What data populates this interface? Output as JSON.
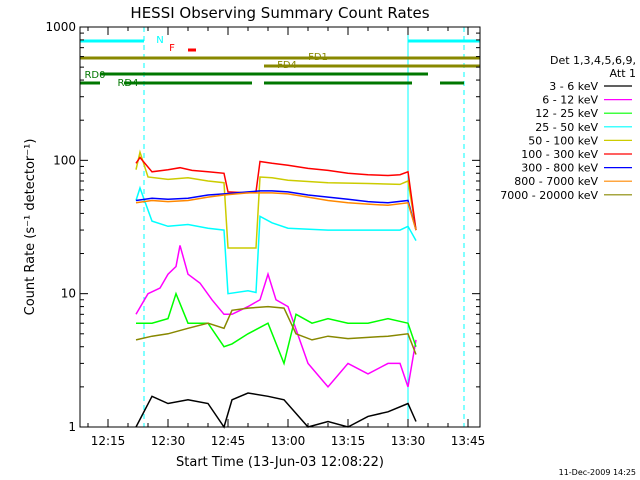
{
  "chart_data": {
    "type": "line",
    "title": "HESSI Observing Summary Count Rates",
    "xlabel": "Start Time (13-Jun-03 12:08:22)",
    "ylabel": "Count Rate (s⁻¹ detector⁻¹)",
    "yscale": "log",
    "ylim": [
      1,
      1000
    ],
    "xlim": [
      "12:08",
      "13:48"
    ],
    "x_ticks": [
      "12:15",
      "12:30",
      "12:45",
      "13:00",
      "13:15",
      "13:30",
      "13:45"
    ],
    "y_ticks": [
      "1",
      "10",
      "100",
      "1000"
    ],
    "legend_header": [
      "Det 1,3,4,5,6,9,",
      "Att 1"
    ],
    "legend_position": "right",
    "series": [
      {
        "name": "3 - 6 keV",
        "color": "#000000",
        "x": [
          "12:22",
          "12:26",
          "12:30",
          "12:35",
          "12:40",
          "12:44",
          "12:46",
          "12:50",
          "12:55",
          "12:59",
          "13:05",
          "13:10",
          "13:15",
          "13:20",
          "13:25",
          "13:30",
          "13:32"
        ],
        "y": [
          1.0,
          1.7,
          1.5,
          1.6,
          1.5,
          1.0,
          1.6,
          1.8,
          1.7,
          1.6,
          1.0,
          1.1,
          1.0,
          1.2,
          1.3,
          1.5,
          1.1
        ]
      },
      {
        "name": "6 - 12 keV",
        "color": "#ff00ff",
        "x": [
          "12:22",
          "12:25",
          "12:28",
          "12:30",
          "12:32",
          "12:33",
          "12:35",
          "12:38",
          "12:41",
          "12:44",
          "12:46",
          "12:50",
          "12:53",
          "12:55",
          "12:57",
          "13:00",
          "13:05",
          "13:10",
          "13:15",
          "13:20",
          "13:25",
          "13:28",
          "13:30",
          "13:32"
        ],
        "y": [
          7,
          10,
          11,
          14,
          16,
          23,
          14,
          12,
          9,
          7,
          7,
          8,
          9,
          14,
          9,
          8,
          3,
          2,
          3,
          2.5,
          3,
          3,
          2,
          4.5
        ]
      },
      {
        "name": "12 - 25 keV",
        "color": "#00ff00",
        "x": [
          "12:22",
          "12:26",
          "12:30",
          "12:32",
          "12:35",
          "12:40",
          "12:44",
          "12:46",
          "12:50",
          "12:55",
          "12:59",
          "13:02",
          "13:06",
          "13:10",
          "13:15",
          "13:20",
          "13:25",
          "13:30",
          "13:32"
        ],
        "y": [
          6,
          6,
          6.5,
          10,
          6,
          6,
          4,
          4.2,
          5,
          6,
          3,
          7,
          6,
          6.5,
          6,
          6,
          6.5,
          6,
          4
        ]
      },
      {
        "name": "25 - 50 keV",
        "color": "#00ffff",
        "x": [
          "12:22",
          "12:23",
          "12:26",
          "12:30",
          "12:35",
          "12:40",
          "12:44",
          "12:45",
          "12:50",
          "12:52",
          "12:53",
          "12:56",
          "13:00",
          "13:10",
          "13:20",
          "13:28",
          "13:30",
          "13:32"
        ],
        "y": [
          50,
          62,
          35,
          32,
          33,
          31,
          30,
          10,
          10.5,
          10.2,
          38,
          34,
          31,
          30,
          30,
          30,
          32,
          25
        ]
      },
      {
        "name": "50 - 100 keV",
        "color": "#cccc00",
        "x": [
          "12:22",
          "12:23",
          "12:25",
          "12:30",
          "12:35",
          "12:40",
          "12:44",
          "12:45",
          "12:50",
          "12:52",
          "12:53",
          "12:56",
          "13:00",
          "13:10",
          "13:20",
          "13:28",
          "13:30",
          "13:32"
        ],
        "y": [
          85,
          115,
          75,
          72,
          74,
          70,
          68,
          22,
          22,
          22,
          75,
          74,
          71,
          68,
          67,
          66,
          70,
          30
        ]
      },
      {
        "name": "100 - 300 keV",
        "color": "#ff0000",
        "x": [
          "12:22",
          "12:23",
          "12:26",
          "12:30",
          "12:33",
          "12:36",
          "12:40",
          "12:44",
          "12:45",
          "12:50",
          "12:52",
          "12:53",
          "12:56",
          "13:00",
          "13:05",
          "13:10",
          "13:15",
          "13:20",
          "13:25",
          "13:28",
          "13:30",
          "13:32"
        ],
        "y": [
          95,
          105,
          82,
          85,
          88,
          84,
          82,
          80,
          58,
          57,
          58,
          98,
          95,
          92,
          87,
          84,
          80,
          78,
          77,
          78,
          82,
          30
        ]
      },
      {
        "name": "300 - 800 keV",
        "color": "#0000ff",
        "x": [
          "12:22",
          "12:26",
          "12:30",
          "12:35",
          "12:40",
          "12:44",
          "12:50",
          "12:53",
          "12:56",
          "13:00",
          "13:05",
          "13:10",
          "13:15",
          "13:20",
          "13:25",
          "13:30",
          "13:32"
        ],
        "y": [
          50,
          52,
          51,
          52,
          55,
          56,
          58,
          59,
          59,
          58,
          55,
          53,
          51,
          49,
          48,
          50,
          30
        ]
      },
      {
        "name": "800 - 7000 keV",
        "color": "#ff8800",
        "x": [
          "12:22",
          "12:26",
          "12:30",
          "12:35",
          "12:40",
          "12:44",
          "12:50",
          "12:53",
          "12:56",
          "13:00",
          "13:05",
          "13:10",
          "13:15",
          "13:20",
          "13:25",
          "13:30",
          "13:32"
        ],
        "y": [
          48,
          50,
          49,
          50,
          53,
          55,
          57,
          57,
          57,
          56,
          53,
          50,
          48,
          47,
          46,
          48,
          30
        ]
      },
      {
        "name": "7000 - 20000 keV",
        "color": "#888800",
        "x": [
          "12:22",
          "12:26",
          "12:30",
          "12:35",
          "12:40",
          "12:44",
          "12:46",
          "12:50",
          "12:55",
          "12:59",
          "13:02",
          "13:06",
          "13:10",
          "13:15",
          "13:20",
          "13:25",
          "13:30",
          "13:32"
        ],
        "y": [
          4.5,
          4.8,
          5.0,
          5.5,
          6.0,
          5.5,
          7.5,
          7.8,
          8.0,
          7.8,
          5.0,
          4.5,
          4.8,
          4.6,
          4.7,
          4.8,
          5.0,
          3.5
        ]
      }
    ],
    "flag_bars": [
      {
        "label": "",
        "color": "#00ffff",
        "segments": [
          [
            "12:08",
            "12:24"
          ],
          [
            "13:30",
            "13:48"
          ]
        ]
      },
      {
        "label": "N",
        "color": "#00ffff",
        "segments": []
      },
      {
        "label": "F",
        "color": "#ff0000",
        "segments": [
          [
            "12:35",
            "12:37"
          ]
        ]
      },
      {
        "label": "FD1",
        "color": "#888800",
        "segments": [
          [
            "12:08",
            "13:48"
          ]
        ]
      },
      {
        "label": "FD4",
        "color": "#888800",
        "segments": [
          [
            "12:54",
            "13:48"
          ]
        ]
      },
      {
        "label": "RD0",
        "color": "#007700",
        "segments": [
          [
            "12:13",
            "13:35"
          ]
        ]
      },
      {
        "label": "RD4",
        "color": "#007700",
        "segments": [
          [
            "12:08",
            "12:13"
          ],
          [
            "12:19",
            "12:44"
          ],
          [
            "12:44",
            "12:51"
          ],
          [
            "12:54",
            "13:31"
          ],
          [
            "13:38",
            "13:44"
          ]
        ]
      }
    ],
    "vertical_markers": [
      {
        "x": "12:08",
        "color": "#00ffff",
        "style": "solid"
      },
      {
        "x": "12:24",
        "color": "#00ffff",
        "style": "dashed"
      },
      {
        "x": "13:30",
        "color": "#00ffff",
        "style": "solid"
      },
      {
        "x": "13:44",
        "color": "#00ffff",
        "style": "dashed"
      }
    ],
    "grid": false
  },
  "stamp": "11-Dec-2009 14:25"
}
